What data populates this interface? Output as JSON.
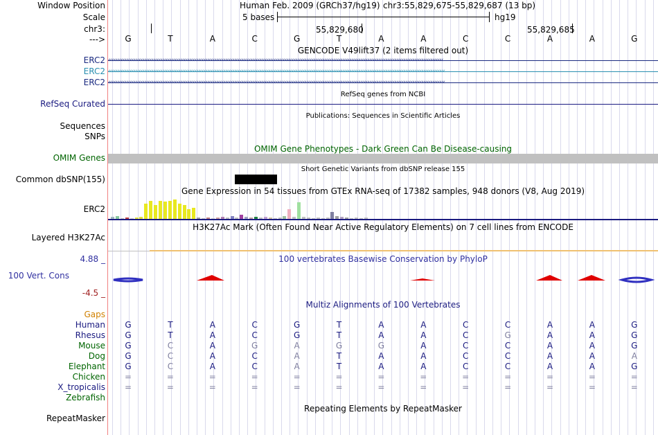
{
  "header": {
    "position_label": "Window Position",
    "scale_label": "Scale",
    "chr_label": "chr3:",
    "strand_label": "--->",
    "assembly": "Human Feb. 2009 (GRCh37/hg19)",
    "coordinates": "chr3:55,829,675-55,829,687 (13 bp)",
    "scale_text": "5 bases",
    "scale_db": "hg19",
    "pos_left": "55,829,680",
    "pos_right": "55,829,685"
  },
  "sequence": [
    "G",
    "T",
    "A",
    "C",
    "G",
    "T",
    "A",
    "A",
    "C",
    "C",
    "A",
    "A",
    "G"
  ],
  "tracks": {
    "gencode": {
      "title": "GENCODE V49lift37 (2 items filtered out)",
      "genes": [
        {
          "label": "ERC2",
          "color": "#1a2a80"
        },
        {
          "label": "ERC2",
          "color": "#2a8fb0"
        },
        {
          "label": "ERC2",
          "color": "#1a2a80"
        }
      ]
    },
    "refseq": {
      "title": "RefSeq genes from NCBI",
      "label": "RefSeq Curated",
      "color": "#1a1a80"
    },
    "publications": {
      "title": "Publications: Sequences in Scientific Articles",
      "label1": "Sequences",
      "label2": "SNPs"
    },
    "omim": {
      "title": "OMIM Gene Phenotypes - Dark Green Can Be Disease-causing",
      "label": "OMIM Genes",
      "color": "#006400"
    },
    "dbsnp": {
      "title": "Short Genetic Variants from dbSNP release 155",
      "label": "Common dbSNP(155)"
    },
    "gtex": {
      "title": "Gene Expression in 54 tissues from GTEx RNA-seq of 17382 samples, 948 donors (V8, Aug 2019)",
      "label": "ERC2",
      "bar_values": [
        {
          "h": 3,
          "c": "#a0b8c0"
        },
        {
          "h": 4,
          "c": "#88c8a0"
        },
        {
          "h": 1,
          "c": "#c0c0c0"
        },
        {
          "h": 2,
          "c": "#c04040"
        },
        {
          "h": 1,
          "c": "#d0d0d0"
        },
        {
          "h": 2,
          "c": "#e0e040"
        },
        {
          "h": 3,
          "c": "#e0e040"
        },
        {
          "h": 22,
          "c": "#e8e820"
        },
        {
          "h": 26,
          "c": "#e8e820"
        },
        {
          "h": 20,
          "c": "#e8e820"
        },
        {
          "h": 26,
          "c": "#e8e820"
        },
        {
          "h": 25,
          "c": "#e8e820"
        },
        {
          "h": 26,
          "c": "#e8e820"
        },
        {
          "h": 28,
          "c": "#e8e820"
        },
        {
          "h": 22,
          "c": "#e8e820"
        },
        {
          "h": 20,
          "c": "#e8e820"
        },
        {
          "h": 14,
          "c": "#e8e820"
        },
        {
          "h": 16,
          "c": "#e8e820"
        },
        {
          "h": 2,
          "c": "#a0a0a0"
        },
        {
          "h": 1,
          "c": "#c0c0c0"
        },
        {
          "h": 2,
          "c": "#c08080"
        },
        {
          "h": 1,
          "c": "#d0d0d0"
        },
        {
          "h": 2,
          "c": "#d0a0a0"
        },
        {
          "h": 3,
          "c": "#b080b0"
        },
        {
          "h": 2,
          "c": "#c0c0c0"
        },
        {
          "h": 4,
          "c": "#8080c0"
        },
        {
          "h": 2,
          "c": "#c0c0c0"
        },
        {
          "h": 6,
          "c": "#a040a0"
        },
        {
          "h": 3,
          "c": "#a0a0c0"
        },
        {
          "h": 2,
          "c": "#c0a0a0"
        },
        {
          "h": 3,
          "c": "#208040"
        },
        {
          "h": 2,
          "c": "#c0c0c0"
        },
        {
          "h": 3,
          "c": "#c0a0d0"
        },
        {
          "h": 2,
          "c": "#d0c0a0"
        },
        {
          "h": 1,
          "c": "#c0c0c0"
        },
        {
          "h": 2,
          "c": "#c0c0c0"
        },
        {
          "h": 4,
          "c": "#a0c0a0"
        },
        {
          "h": 14,
          "c": "#f0b0c0"
        },
        {
          "h": 3,
          "c": "#c0c0c0"
        },
        {
          "h": 24,
          "c": "#a0e0a0"
        },
        {
          "h": 3,
          "c": "#c0c0c0"
        },
        {
          "h": 2,
          "c": "#c0c0c0"
        },
        {
          "h": 1,
          "c": "#c0c0c0"
        },
        {
          "h": 2,
          "c": "#c0c0c0"
        },
        {
          "h": 1,
          "c": "#c0c0c0"
        },
        {
          "h": 2,
          "c": "#c0c0c0"
        },
        {
          "h": 10,
          "c": "#8080a0"
        },
        {
          "h": 4,
          "c": "#a0a0a0"
        },
        {
          "h": 3,
          "c": "#b0a0c0"
        },
        {
          "h": 2,
          "c": "#a0a0a0"
        },
        {
          "h": 1,
          "c": "#c0c0c0"
        },
        {
          "h": 2,
          "c": "#c0c0c0"
        },
        {
          "h": 1,
          "c": "#c0c0c0"
        },
        {
          "h": 2,
          "c": "#c0c0c0"
        }
      ]
    },
    "h3k27ac": {
      "title": "H3K27Ac Mark (Often Found Near Active Regulatory Elements) on 7 cell lines from ENCODE",
      "label": "Layered H3K27Ac"
    },
    "phylop": {
      "title": "100 vertebrates Basewise Conservation by PhyloP",
      "label": "100 Vert. Cons",
      "max": "4.88 _",
      "min": "-4.5 _",
      "color": "#3030a0"
    },
    "multiz": {
      "title": "Multiz Alignments of 100 Vertebrates",
      "gaps_label": "Gaps",
      "species": [
        {
          "name": "Human",
          "bases": [
            "G",
            "T",
            "A",
            "C",
            "G",
            "T",
            "A",
            "A",
            "C",
            "C",
            "A",
            "A",
            "G"
          ],
          "dim": [
            0,
            0,
            0,
            0,
            0,
            0,
            0,
            0,
            0,
            0,
            0,
            0,
            0
          ]
        },
        {
          "name": "Rhesus",
          "bases": [
            "G",
            "T",
            "A",
            "C",
            "G",
            "T",
            "A",
            "A",
            "C",
            "G",
            "A",
            "A",
            "G"
          ],
          "dim": [
            0,
            0,
            0,
            0,
            0,
            0,
            0,
            0,
            0,
            1,
            0,
            0,
            0
          ]
        },
        {
          "name": "Mouse",
          "bases": [
            "G",
            "C",
            "A",
            "G",
            "A",
            "G",
            "G",
            "A",
            "C",
            "C",
            "A",
            "A",
            "G"
          ],
          "dim": [
            0,
            1,
            0,
            1,
            1,
            1,
            1,
            0,
            0,
            0,
            0,
            0,
            0
          ]
        },
        {
          "name": "Dog",
          "bases": [
            "G",
            "C",
            "A",
            "C",
            "A",
            "T",
            "A",
            "A",
            "C",
            "C",
            "A",
            "A",
            "A"
          ],
          "dim": [
            0,
            1,
            0,
            0,
            1,
            0,
            0,
            0,
            0,
            0,
            0,
            0,
            1
          ]
        },
        {
          "name": "Elephant",
          "bases": [
            "G",
            "C",
            "A",
            "C",
            "A",
            "T",
            "A",
            "A",
            "C",
            "C",
            "A",
            "A",
            "G"
          ],
          "dim": [
            0,
            1,
            0,
            0,
            1,
            0,
            0,
            0,
            0,
            0,
            0,
            0,
            0
          ]
        },
        {
          "name": "Chicken",
          "bases": [
            "=",
            "=",
            "=",
            "=",
            "=",
            "=",
            "=",
            "=",
            "=",
            "=",
            "=",
            "=",
            "="
          ],
          "dim": [
            1,
            1,
            1,
            1,
            1,
            1,
            1,
            1,
            1,
            1,
            1,
            1,
            1
          ]
        },
        {
          "name": "X_tropicalis",
          "bases": [
            "=",
            "=",
            "=",
            "=",
            "=",
            "=",
            "=",
            "=",
            "=",
            "=",
            "=",
            "=",
            "="
          ],
          "dim": [
            1,
            1,
            1,
            1,
            1,
            1,
            1,
            1,
            1,
            1,
            1,
            1,
            1
          ]
        },
        {
          "name": "Zebrafish",
          "bases": [
            "",
            "",
            "",
            "",
            "",
            "",
            "",
            "",
            "",
            "",
            "",
            "",
            ""
          ],
          "dim": [
            0,
            0,
            0,
            0,
            0,
            0,
            0,
            0,
            0,
            0,
            0,
            0,
            0
          ]
        }
      ]
    },
    "repeatmasker": {
      "title": "Repeating Elements by RepeatMasker",
      "label": "RepeatMasker"
    }
  },
  "colors": {
    "human_species": "#1a1a80",
    "mammal_species": "#006400",
    "gaps": "#d08000",
    "dim_base": "#8080a0",
    "phylop_pos": "#e00000",
    "phylop_neg": "#3030c0"
  }
}
